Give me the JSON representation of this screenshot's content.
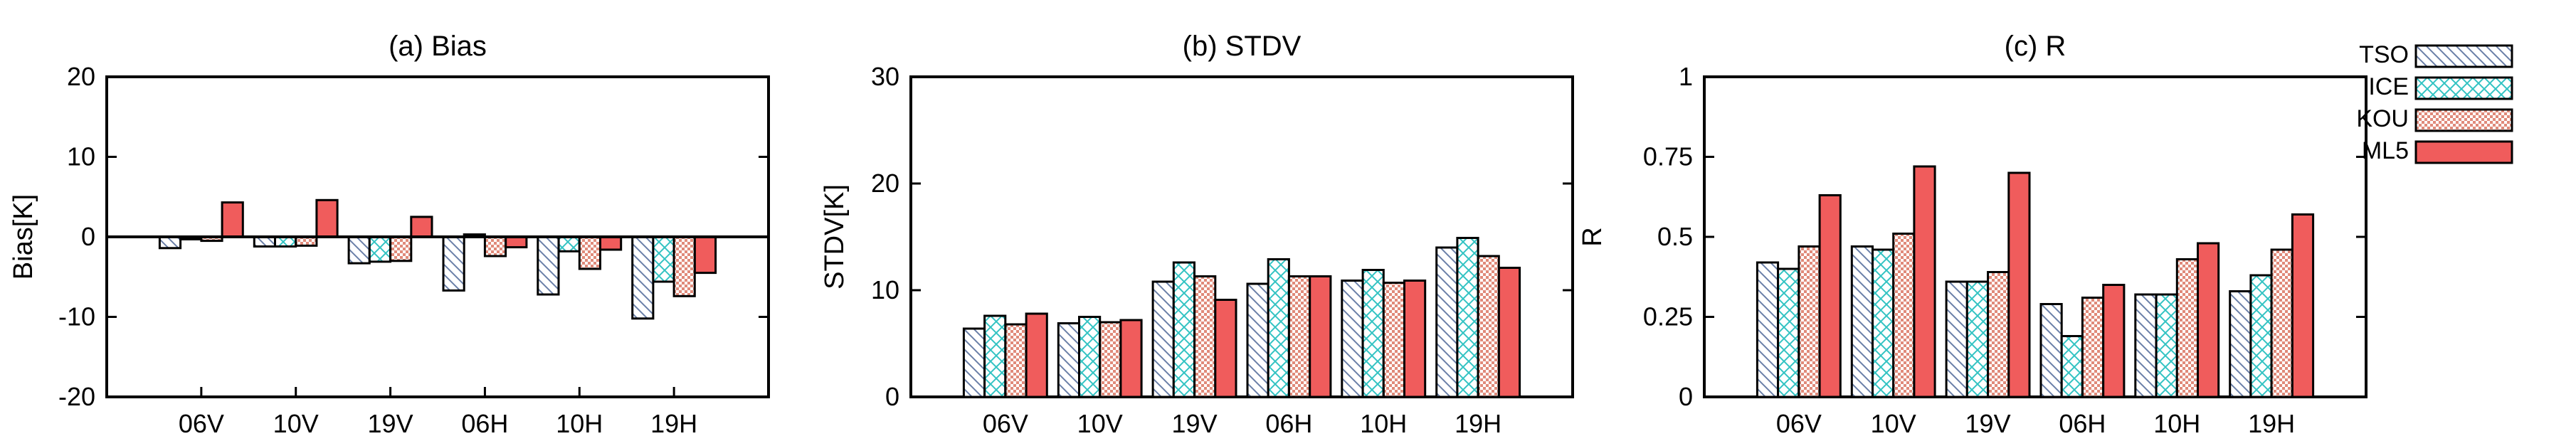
{
  "chart_data": [
    {
      "type": "bar",
      "title": "(a) Bias",
      "xlabel": "",
      "ylabel": "Bias[K]",
      "ylim": [
        -20,
        20
      ],
      "yticks": [
        -20,
        -10,
        0,
        10,
        20
      ],
      "zero_line": true,
      "categories": [
        "06V",
        "10V",
        "19V",
        "06H",
        "10H",
        "19H"
      ],
      "series": [
        {
          "name": "TSO",
          "values": [
            -1.4,
            -1.2,
            -3.3,
            -6.7,
            -7.2,
            -10.2
          ]
        },
        {
          "name": "ICE",
          "values": [
            -0.3,
            -1.2,
            -3.1,
            0.3,
            -1.8,
            -5.6
          ]
        },
        {
          "name": "KOU",
          "values": [
            -0.5,
            -1.1,
            -3.0,
            -2.4,
            -4.0,
            -7.4
          ]
        },
        {
          "name": "ML5",
          "values": [
            4.3,
            4.6,
            2.5,
            -1.3,
            -1.6,
            -4.5
          ]
        }
      ]
    },
    {
      "type": "bar",
      "title": "(b) STDV",
      "xlabel": "",
      "ylabel": "STDV[K]",
      "ylim": [
        0,
        30
      ],
      "yticks": [
        0,
        10,
        20,
        30
      ],
      "zero_line": false,
      "categories": [
        "06V",
        "10V",
        "19V",
        "06H",
        "10H",
        "19H"
      ],
      "series": [
        {
          "name": "TSO",
          "values": [
            6.4,
            6.9,
            10.8,
            10.6,
            10.9,
            14.0
          ]
        },
        {
          "name": "ICE",
          "values": [
            7.6,
            7.5,
            12.6,
            12.9,
            11.9,
            14.9
          ]
        },
        {
          "name": "KOU",
          "values": [
            6.8,
            7.0,
            11.3,
            11.3,
            10.7,
            13.2
          ]
        },
        {
          "name": "ML5",
          "values": [
            7.8,
            7.2,
            9.1,
            11.3,
            10.9,
            12.1
          ]
        }
      ]
    },
    {
      "type": "bar",
      "title": "(c) R",
      "xlabel": "",
      "ylabel": "R",
      "ylim": [
        0,
        1
      ],
      "yticks": [
        0,
        0.25,
        0.5,
        0.75,
        1
      ],
      "yticklabels": [
        "0",
        "0.25",
        "0.5",
        "0.75",
        "1"
      ],
      "zero_line": false,
      "categories": [
        "06V",
        "10V",
        "19V",
        "06H",
        "10H",
        "19H"
      ],
      "series": [
        {
          "name": "TSO",
          "values": [
            0.42,
            0.47,
            0.36,
            0.29,
            0.32,
            0.33
          ]
        },
        {
          "name": "ICE",
          "values": [
            0.4,
            0.46,
            0.36,
            0.19,
            0.32,
            0.38
          ]
        },
        {
          "name": "KOU",
          "values": [
            0.47,
            0.51,
            0.39,
            0.31,
            0.43,
            0.46
          ]
        },
        {
          "name": "ML5",
          "values": [
            0.63,
            0.72,
            0.7,
            0.35,
            0.48,
            0.57
          ]
        }
      ]
    }
  ],
  "legend": {
    "placement": "right",
    "entries": [
      {
        "name": "TSO",
        "label": "TSO",
        "pattern": "diagonal-hatch",
        "color": "#6a7fa8"
      },
      {
        "name": "ICE",
        "label": "ICE",
        "pattern": "cross-hatch",
        "color": "#33c3c3"
      },
      {
        "name": "KOU",
        "label": "KOU",
        "pattern": "check",
        "color": "#e08a7a"
      },
      {
        "name": "ML5",
        "label": "ML5",
        "pattern": "solid",
        "color": "#f05c5c"
      }
    ]
  },
  "colors": {
    "axis": "#000000",
    "solid_fill": "#f05c5c",
    "tso_stroke": "#6a7fa8",
    "ice_stroke": "#33c3c3",
    "kou_stroke": "#e08a7a"
  }
}
